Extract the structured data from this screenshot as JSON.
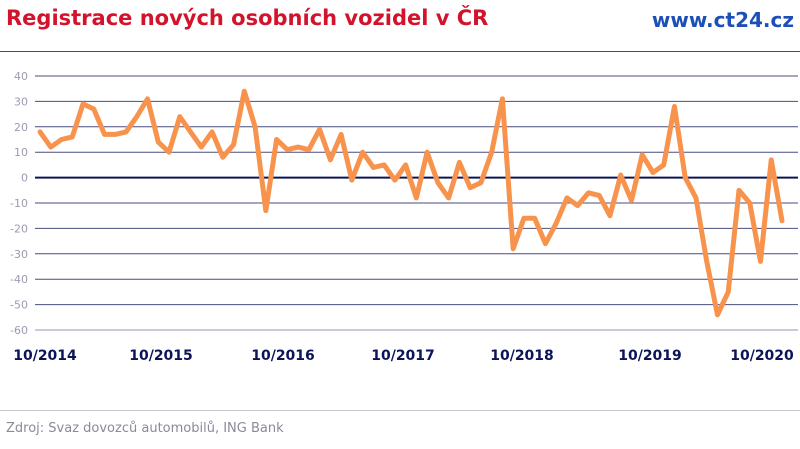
{
  "header": {
    "title": "Registrace nových osobních vozidel v ČR",
    "brand": "www.ct24.cz"
  },
  "footer": {
    "source": "Zdroj: Svaz dovozců automobilů, ING Bank"
  },
  "colors": {
    "line": "#f7934c",
    "grid": "#2a2f6b",
    "zero": "#0c1459",
    "title": "#d3122b",
    "brand": "#1d4fb8"
  },
  "chart_data": {
    "type": "line",
    "title": "Registrace nových osobních vozidel v ČR",
    "xlabel": "",
    "ylabel": "",
    "ylim": [
      -60,
      40
    ],
    "yticks": [
      40,
      30,
      20,
      10,
      0,
      -10,
      -20,
      -30,
      -40,
      -50,
      -60
    ],
    "grid": true,
    "xtick_labels": [
      "10/2014",
      "10/2015",
      "10/2016",
      "10/2017",
      "10/2018",
      "10/2019",
      "10/2020"
    ],
    "values": [
      18,
      12,
      15,
      16,
      29,
      27,
      17,
      17,
      18,
      24,
      31,
      14,
      10,
      24,
      18,
      12,
      18,
      8,
      13,
      34,
      20,
      -13,
      15,
      11,
      12,
      11,
      19,
      7,
      17,
      -1,
      10,
      4,
      5,
      -1,
      5,
      -8,
      10,
      -2,
      -8,
      6,
      -4,
      -2,
      10,
      31,
      -28,
      -16,
      -16,
      -26,
      -18,
      -8,
      -11,
      -6,
      -7,
      -15,
      1,
      -9,
      9,
      2,
      5,
      28,
      0,
      -8,
      -33,
      -54,
      -45,
      -5,
      -10,
      -33,
      7,
      -17
    ]
  }
}
